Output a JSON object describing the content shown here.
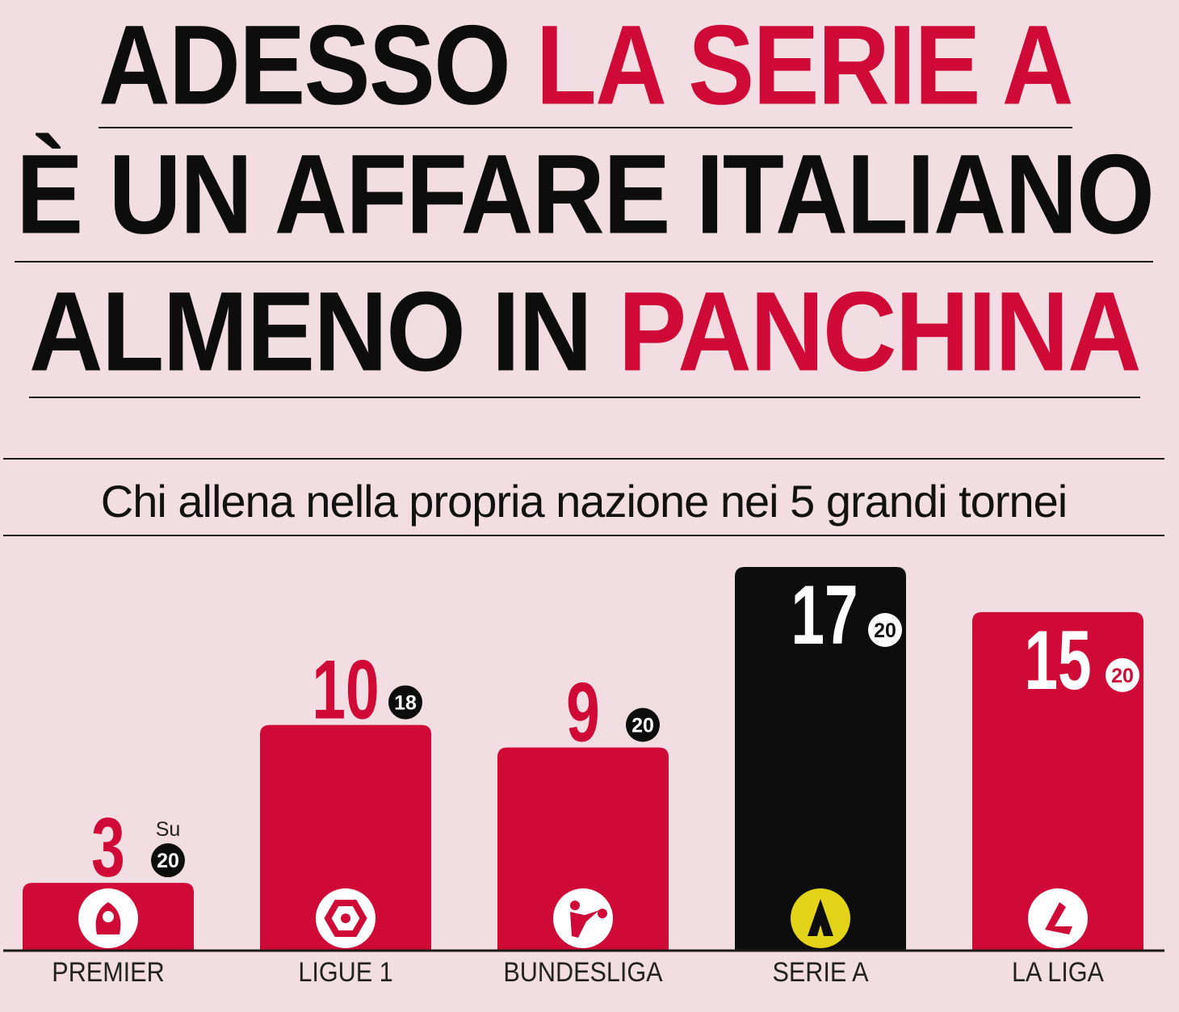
{
  "headline": {
    "line1_black": "ADESSO",
    "line1_red": "LA SERIE A",
    "line2": "È UN AFFARE ITALIANO",
    "line3_black": "ALMENO IN",
    "line3_red": "PANCHINA"
  },
  "colors": {
    "background": "#f2dde2",
    "red": "#cf0a37",
    "black": "#0d0d0d",
    "highlight": "#0d0d0d",
    "serie_a_logo": "#e3d419"
  },
  "chart_data": {
    "type": "bar",
    "title": "Chi allena nella propria nazione nei 5 grandi tornei",
    "categories": [
      "PREMIER",
      "LIGUE 1",
      "BUNDESLIGA",
      "SERIE A",
      "LA LIGA"
    ],
    "values": [
      3,
      10,
      9,
      17,
      15
    ],
    "totals": [
      20,
      18,
      20,
      20,
      20
    ],
    "total_prefix": "Su",
    "highlight_category": "SERIE A",
    "logos": [
      "premier-league-lion-icon",
      "ligue1-hexagon-icon",
      "bundesliga-player-icon",
      "serie-a-star-icon",
      "la-liga-icon"
    ],
    "ylim": [
      0,
      17
    ],
    "xlabel": "",
    "ylabel": "",
    "grid": false,
    "legend": "none"
  }
}
